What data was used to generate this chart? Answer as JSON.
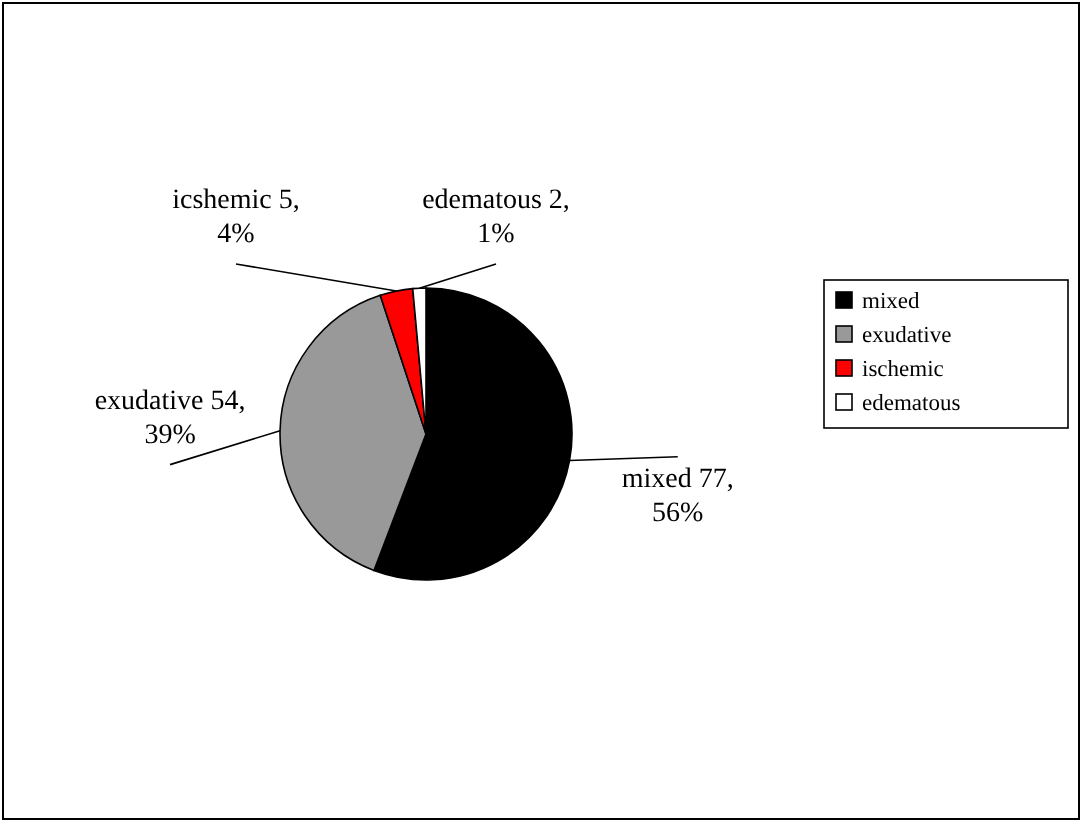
{
  "chart_data": {
    "type": "pie",
    "categories": [
      "mixed",
      "exudative",
      "ischemic",
      "edematous"
    ],
    "values": [
      77,
      54,
      5,
      2
    ],
    "colors": [
      "#000000",
      "#999999",
      "#ff0000",
      "#ffffff"
    ],
    "value_labels": [
      "mixed 77, 56%",
      "exudative 54, 39%",
      "icshemic 5, 4%",
      "edematous 2, 1%"
    ],
    "legend": "right"
  }
}
